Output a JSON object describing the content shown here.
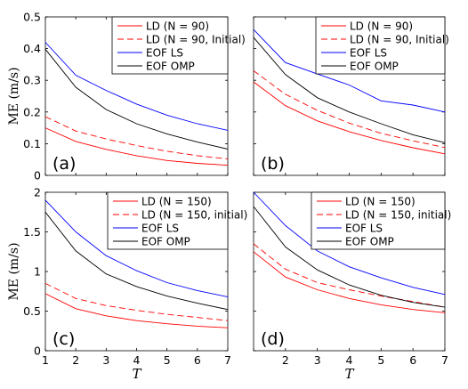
{
  "chart_data": [
    {
      "type": "line",
      "panel_label": "(a)",
      "ylabel": "ME (m/s)",
      "xlabel": "",
      "x": [
        1,
        2,
        3,
        4,
        5,
        6,
        7
      ],
      "xlim": [
        1,
        7
      ],
      "ylim": [
        0,
        0.5
      ],
      "yticks": [
        "0",
        "0.1",
        "0.2",
        "0.3",
        "0.4",
        "0.5"
      ],
      "xticks": [],
      "legend_position": "top-right",
      "series": [
        {
          "name": "LD (N = 90)",
          "color": "#ff0000",
          "dash": "solid",
          "values": [
            0.15,
            0.107,
            0.082,
            0.062,
            0.047,
            0.038,
            0.032
          ]
        },
        {
          "name": "LD (N = 90, Initial)",
          "color": "#ff0000",
          "dash": "dashed",
          "values": [
            0.185,
            0.14,
            0.115,
            0.094,
            0.076,
            0.062,
            0.052
          ]
        },
        {
          "name": "EOF LS",
          "color": "#0000ff",
          "dash": "solid",
          "values": [
            0.42,
            0.316,
            0.268,
            0.225,
            0.19,
            0.163,
            0.142
          ]
        },
        {
          "name": "EOF OMP",
          "color": "#000000",
          "dash": "solid",
          "values": [
            0.398,
            0.278,
            0.208,
            0.163,
            0.131,
            0.105,
            0.083
          ]
        }
      ]
    },
    {
      "type": "line",
      "panel_label": "(b)",
      "ylabel": "",
      "xlabel": "",
      "x": [
        1,
        2,
        3,
        4,
        5,
        6,
        7
      ],
      "xlim": [
        1,
        7
      ],
      "ylim": [
        0,
        0.5
      ],
      "yticks": [],
      "xticks": [],
      "legend_position": "top-right",
      "series": [
        {
          "name": "LD (N = 90)",
          "color": "#ff0000",
          "dash": "solid",
          "values": [
            0.295,
            0.22,
            0.172,
            0.138,
            0.11,
            0.087,
            0.068
          ]
        },
        {
          "name": "LD (N = 90, Initial)",
          "color": "#ff0000",
          "dash": "dashed",
          "values": [
            0.33,
            0.256,
            0.205,
            0.165,
            0.133,
            0.109,
            0.088
          ]
        },
        {
          "name": "EOF LS",
          "color": "#0000ff",
          "dash": "solid",
          "values": [
            0.46,
            0.356,
            0.32,
            0.285,
            0.235,
            0.222,
            0.2
          ]
        },
        {
          "name": "EOF OMP",
          "color": "#000000",
          "dash": "solid",
          "values": [
            0.435,
            0.318,
            0.245,
            0.2,
            0.163,
            0.128,
            0.103
          ]
        }
      ]
    },
    {
      "type": "line",
      "panel_label": "(c)",
      "ylabel": "ME (m/s)",
      "xlabel": "T",
      "x": [
        1,
        2,
        3,
        4,
        5,
        6,
        7
      ],
      "xlim": [
        1,
        7
      ],
      "ylim": [
        0,
        2
      ],
      "yticks": [
        "0",
        "0.5",
        "1",
        "1.5",
        "2"
      ],
      "xticks": [
        "1",
        "2",
        "3",
        "4",
        "5",
        "6",
        "7"
      ],
      "legend_position": "top-right",
      "series": [
        {
          "name": "LD (N = 150)",
          "color": "#ff0000",
          "dash": "solid",
          "values": [
            0.72,
            0.53,
            0.44,
            0.38,
            0.34,
            0.31,
            0.29
          ]
        },
        {
          "name": "LD (N = 150, initial)",
          "color": "#ff0000",
          "dash": "dashed",
          "values": [
            0.85,
            0.66,
            0.57,
            0.51,
            0.46,
            0.42,
            0.38
          ]
        },
        {
          "name": "EOF LS",
          "color": "#0000ff",
          "dash": "solid",
          "values": [
            1.9,
            1.5,
            1.2,
            1.01,
            0.86,
            0.76,
            0.68
          ]
        },
        {
          "name": "EOF OMP",
          "color": "#000000",
          "dash": "solid",
          "values": [
            1.75,
            1.26,
            0.97,
            0.81,
            0.69,
            0.6,
            0.52
          ]
        }
      ]
    },
    {
      "type": "line",
      "panel_label": "(d)",
      "ylabel": "",
      "xlabel": "T",
      "x": [
        1,
        2,
        3,
        4,
        5,
        6,
        7
      ],
      "xlim": [
        1,
        7
      ],
      "ylim": [
        0,
        2
      ],
      "yticks": [],
      "xticks": [
        "2",
        "3",
        "4",
        "5",
        "6",
        "7"
      ],
      "legend_position": "top-right",
      "series": [
        {
          "name": "LD (N = 150)",
          "color": "#ff0000",
          "dash": "solid",
          "values": [
            1.25,
            0.93,
            0.77,
            0.66,
            0.58,
            0.52,
            0.48
          ]
        },
        {
          "name": "LD (N = 150, initial)",
          "color": "#ff0000",
          "dash": "dashed",
          "values": [
            1.35,
            1.03,
            0.86,
            0.77,
            0.69,
            0.62,
            0.55
          ]
        },
        {
          "name": "EOF LS",
          "color": "#0000ff",
          "dash": "solid",
          "values": [
            2.0,
            1.58,
            1.26,
            1.06,
            0.92,
            0.8,
            0.71
          ]
        },
        {
          "name": "EOF OMP",
          "color": "#000000",
          "dash": "solid",
          "values": [
            1.82,
            1.31,
            1.02,
            0.83,
            0.7,
            0.61,
            0.55
          ]
        }
      ]
    }
  ]
}
